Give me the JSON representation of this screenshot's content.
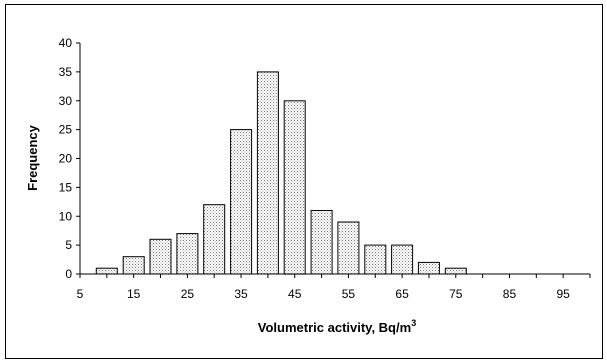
{
  "chart_data": {
    "type": "bar",
    "title": "",
    "xlabel": "Volumetric activity, Bq/m",
    "xlabel_superscript": "3",
    "ylabel": "Frequency",
    "x_tick_labels": [
      "5",
      "15",
      "25",
      "35",
      "45",
      "55",
      "65",
      "75",
      "85",
      "95"
    ],
    "y_tick_labels": [
      "0",
      "5",
      "10",
      "15",
      "20",
      "25",
      "30",
      "35",
      "40"
    ],
    "ylim": [
      0,
      40
    ],
    "xlim": [
      5,
      100
    ],
    "bin_width": 5,
    "bins": [
      {
        "x": 10,
        "value": 1
      },
      {
        "x": 15,
        "value": 3
      },
      {
        "x": 20,
        "value": 6
      },
      {
        "x": 25,
        "value": 7
      },
      {
        "x": 30,
        "value": 12
      },
      {
        "x": 35,
        "value": 25
      },
      {
        "x": 40,
        "value": 35
      },
      {
        "x": 45,
        "value": 30
      },
      {
        "x": 50,
        "value": 11
      },
      {
        "x": 55,
        "value": 9
      },
      {
        "x": 60,
        "value": 5
      },
      {
        "x": 65,
        "value": 5
      },
      {
        "x": 70,
        "value": 2
      },
      {
        "x": 75,
        "value": 1
      }
    ],
    "grid": false,
    "legend": "none",
    "bar_fill": "dotted-gray",
    "bar_stroke": "#000000"
  }
}
